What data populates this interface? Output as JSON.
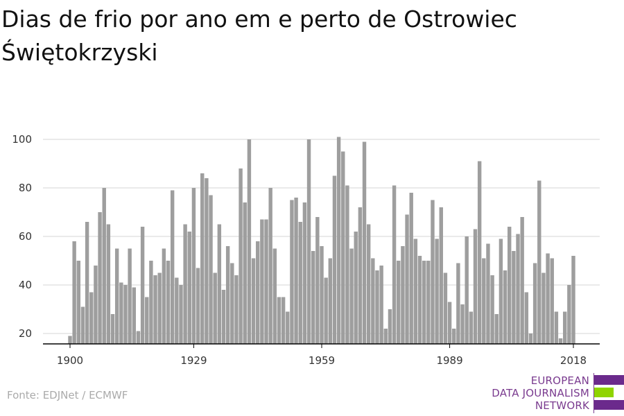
{
  "title": "Dias de frio por ano em e perto de Ostrowiec Świętokrzyski",
  "source": "Fonte: EDJNet / ECMWF",
  "logo": {
    "lines": [
      "EUROPEAN",
      "DATA JOURNALISM",
      "NETWORK"
    ],
    "colors": {
      "purple": "#6b2a8c",
      "green": "#8fd400"
    }
  },
  "colors": {
    "bar": "#9e9e9e",
    "grid": "#dddddd",
    "axis": "#000000"
  },
  "chart_data": {
    "type": "bar",
    "x": [
      1900,
      1901,
      1902,
      1903,
      1904,
      1905,
      1906,
      1907,
      1908,
      1909,
      1910,
      1911,
      1912,
      1913,
      1914,
      1915,
      1916,
      1917,
      1918,
      1919,
      1920,
      1921,
      1922,
      1923,
      1924,
      1925,
      1926,
      1927,
      1928,
      1929,
      1930,
      1931,
      1932,
      1933,
      1934,
      1935,
      1936,
      1937,
      1938,
      1939,
      1940,
      1941,
      1942,
      1943,
      1944,
      1945,
      1946,
      1947,
      1948,
      1949,
      1950,
      1951,
      1952,
      1953,
      1954,
      1955,
      1956,
      1957,
      1958,
      1959,
      1960,
      1961,
      1962,
      1963,
      1964,
      1965,
      1966,
      1967,
      1968,
      1969,
      1970,
      1971,
      1972,
      1973,
      1974,
      1975,
      1976,
      1977,
      1978,
      1979,
      1980,
      1981,
      1982,
      1983,
      1984,
      1985,
      1986,
      1987,
      1988,
      1989,
      1990,
      1991,
      1992,
      1993,
      1994,
      1995,
      1996,
      1997,
      1998,
      1999,
      2000,
      2001,
      2002,
      2003,
      2004,
      2005,
      2006,
      2007,
      2008,
      2009,
      2010,
      2011,
      2012,
      2013,
      2014,
      2015,
      2016,
      2017,
      2018
    ],
    "values": [
      19,
      58,
      50,
      31,
      66,
      37,
      48,
      70,
      80,
      65,
      28,
      55,
      41,
      40,
      55,
      39,
      21,
      64,
      35,
      50,
      44,
      45,
      55,
      50,
      79,
      43,
      40,
      65,
      62,
      80,
      47,
      86,
      84,
      77,
      45,
      65,
      38,
      56,
      49,
      44,
      88,
      74,
      100,
      51,
      58,
      67,
      67,
      80,
      55,
      35,
      35,
      29,
      75,
      76,
      66,
      74,
      100,
      54,
      68,
      56,
      43,
      51,
      85,
      101,
      95,
      81,
      55,
      62,
      72,
      99,
      65,
      51,
      46,
      48,
      22,
      30,
      81,
      50,
      56,
      69,
      78,
      59,
      52,
      50,
      50,
      75,
      59,
      72,
      45,
      33,
      22,
      49,
      32,
      60,
      29,
      63,
      91,
      51,
      57,
      44,
      28,
      59,
      46,
      64,
      54,
      61,
      68,
      37,
      20,
      49,
      83,
      45,
      53,
      51,
      29,
      18,
      29,
      40,
      52
    ],
    "xticks": [
      1900,
      1929,
      1959,
      1989,
      2018
    ],
    "yticks": [
      20,
      40,
      60,
      80,
      100
    ],
    "ylim": [
      15,
      101
    ],
    "xlabel": "",
    "ylabel": "",
    "grid": true
  }
}
